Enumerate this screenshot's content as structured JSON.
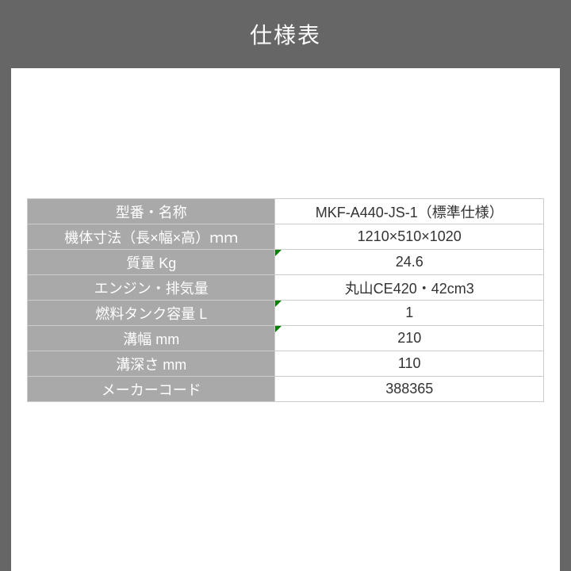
{
  "header": {
    "title": "仕様表"
  },
  "spec_table": {
    "rows": [
      {
        "label": "型番・名称",
        "value": "MKF-A440-JS-1（標準仕様）",
        "mark": false
      },
      {
        "label": "機体寸法（長×幅×高）ｍｍ",
        "value": "1210×510×1020",
        "mark": false
      },
      {
        "label": "質量 Kg",
        "value": "24.6",
        "mark": true
      },
      {
        "label": "エンジン・排気量",
        "value": "丸山CE420・42cm3",
        "mark": false
      },
      {
        "label": "燃料タンク容量 L",
        "value": "1",
        "mark": true
      },
      {
        "label": "溝幅 mm",
        "value": "210",
        "mark": true
      },
      {
        "label": "溝深さ mm",
        "value": "110",
        "mark": false
      },
      {
        "label": "メーカーコード",
        "value": "388365",
        "mark": false
      }
    ],
    "label_bg": "#a9a9a9",
    "label_color": "#ffffff",
    "value_bg": "#ffffff",
    "value_color": "#333333",
    "border_color": "#cccccc",
    "mark_color": "#008000",
    "font_size": 18
  },
  "layout": {
    "header_bg": "#666666",
    "header_color": "#ffffff",
    "page_bg": "#ffffff"
  }
}
